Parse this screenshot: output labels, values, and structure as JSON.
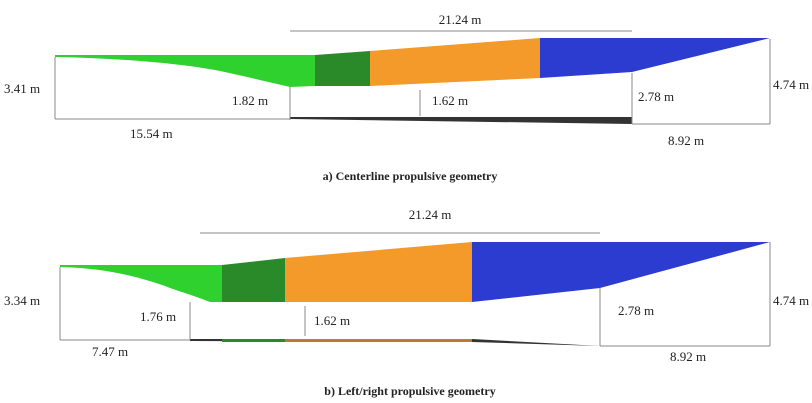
{
  "panels": [
    {
      "caption": "a) Centerline propulsive geometry",
      "dimensions": {
        "total_length": "21.24 m",
        "left_height": "3.41 m",
        "inlet_height": "1.82 m",
        "throat_height": "1.62 m",
        "exit_height": "2.78 m",
        "right_height": "4.74 m",
        "left_length": "15.54 m",
        "right_length": "8.92 m"
      }
    },
    {
      "caption": "b) Left/right propulsive geometry",
      "dimensions": {
        "total_length": "21.24 m",
        "left_height": "3.34 m",
        "inlet_height": "1.76 m",
        "throat_height": "1.62 m",
        "exit_height": "2.78 m",
        "right_height": "4.74 m",
        "left_length": "7.47 m",
        "right_length": "8.92 m"
      }
    }
  ]
}
